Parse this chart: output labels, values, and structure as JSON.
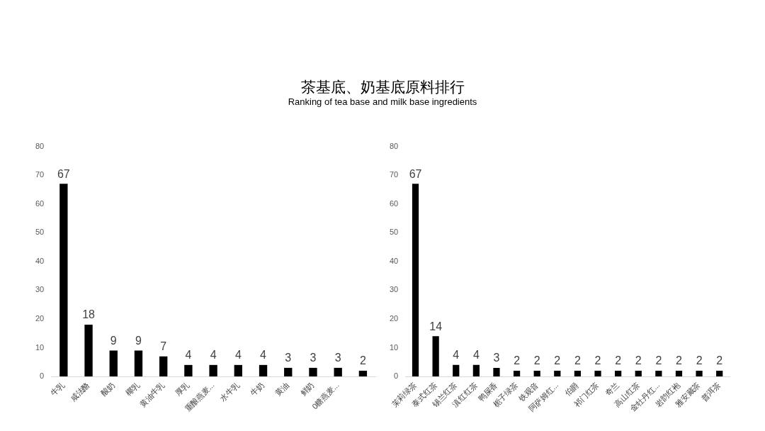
{
  "chart_data": [
    {
      "type": "bar",
      "title": "茶基底、奶基底原料排行",
      "subtitle": "Ranking of tea base and milk base ingredients",
      "categories": [
        "牛乳",
        "咸法酪",
        "酸奶",
        "椰乳",
        "黄油牛乳",
        "厚乳",
        "重酿燕麦...",
        "水牛乳",
        "牛奶",
        "黄油",
        "鲜奶",
        "0糖燕麦...",
        null
      ],
      "values": [
        67,
        18,
        9,
        9,
        7,
        4,
        4,
        4,
        4,
        3,
        3,
        3,
        2
      ],
      "color": "#000000",
      "ylim": [
        0,
        80
      ],
      "yticks": [
        0,
        10,
        20,
        30,
        40,
        50,
        60,
        70,
        80
      ],
      "grid": false,
      "data_labels": true
    },
    {
      "type": "bar",
      "categories": [
        "茉莉绿茶",
        "泰式红茶",
        "锡兰红茶",
        "滇红红茶",
        "鸭屎香",
        "栀子绿茶",
        "铁观音",
        "阿萨姆红...",
        "伯爵",
        "祁门红茶",
        "奇兰",
        "高山红茶",
        "金牡丹红...",
        "岩韵红袍",
        "雅安藏茶",
        "普洱茶"
      ],
      "values": [
        67,
        14,
        4,
        4,
        3,
        2,
        2,
        2,
        2,
        2,
        2,
        2,
        2,
        2,
        2,
        2
      ],
      "color": "#000000",
      "ylim": [
        0,
        80
      ],
      "yticks": [
        0,
        10,
        20,
        30,
        40,
        50,
        60,
        70,
        80
      ],
      "grid": false,
      "data_labels": true
    }
  ]
}
